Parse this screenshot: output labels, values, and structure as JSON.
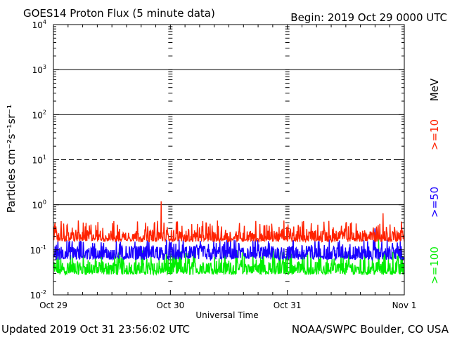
{
  "chart_data": {
    "type": "line",
    "title": "GOES14 Proton Flux (5 minute data)",
    "begin_label": "Begin: 2019 Oct 29 0000 UTC",
    "xlabel": "Universal Time",
    "ylabel": "Particles cm⁻²s⁻¹sr⁻¹",
    "energy_unit": "MeV",
    "y_scale": "log",
    "ylim": [
      0.01,
      10000
    ],
    "xlim_days": [
      0,
      3
    ],
    "x_ticks": [
      "Oct 29",
      "Oct 30",
      "Oct 31",
      "Nov 1"
    ],
    "y_ticks": [
      {
        "base": "10",
        "exp": "-2"
      },
      {
        "base": "10",
        "exp": "-1"
      },
      {
        "base": "10",
        "exp": "0"
      },
      {
        "base": "10",
        "exp": "1"
      },
      {
        "base": "10",
        "exp": "2"
      },
      {
        "base": "10",
        "exp": "3"
      },
      {
        "base": "10",
        "exp": "4"
      }
    ],
    "threshold_lines": [
      {
        "value": 1,
        "style": "solid"
      },
      {
        "value": 10,
        "style": "dashed"
      },
      {
        "value": 100,
        "style": "solid"
      },
      {
        "value": 1000,
        "style": "solid"
      }
    ],
    "series": [
      {
        "name": ">=10",
        "color": "#ff2200",
        "baseline": 0.2,
        "low": 0.15,
        "high": 0.45,
        "spikes": [
          [
            0.92,
            1.2
          ],
          [
            2.82,
            0.65
          ]
        ]
      },
      {
        "name": ">=50",
        "color": "#1a00ff",
        "baseline": 0.09,
        "low": 0.06,
        "high": 0.17,
        "spikes": [
          [
            2.75,
            0.3
          ]
        ]
      },
      {
        "name": ">=100",
        "color": "#00ee00",
        "baseline": 0.04,
        "low": 0.028,
        "high": 0.1,
        "spikes": [
          [
            2.78,
            0.2
          ]
        ]
      }
    ]
  },
  "footer": {
    "updated": "Updated 2019 Oct 31 23:56:02 UTC",
    "source": "NOAA/SWPC Boulder, CO USA"
  }
}
